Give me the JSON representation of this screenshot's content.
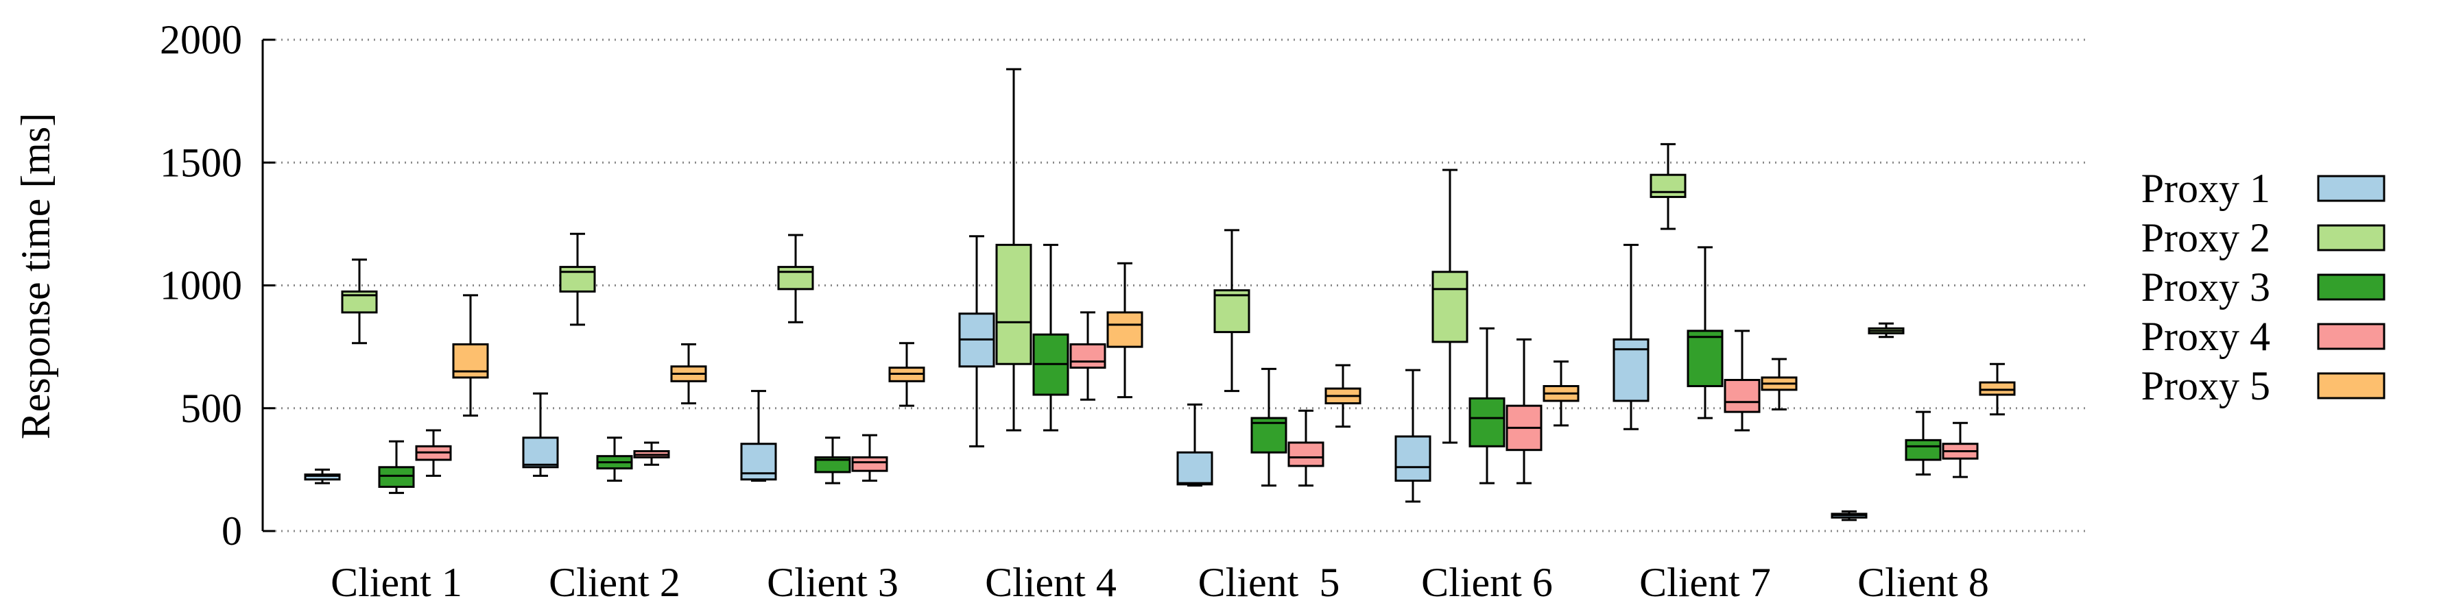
{
  "chart_data": {
    "type": "box",
    "ylabel": "Response time [ms]",
    "ylim": [
      0,
      2000
    ],
    "yticks": [
      0,
      500,
      1000,
      1500,
      2000
    ],
    "grid": "y-dotted",
    "legend_position": "right",
    "categories": [
      "Client 1",
      "Client 2",
      "Client 3",
      "Client 4",
      "Client  5",
      "Client 6",
      "Client 7",
      "Client 8"
    ],
    "series": [
      {
        "name": "Proxy 1",
        "color": "#a9cfe5",
        "boxes": [
          {
            "min": 195,
            "q1": 210,
            "median": 225,
            "q3": 230,
            "max": 250
          },
          {
            "min": 225,
            "q1": 260,
            "median": 270,
            "q3": 380,
            "max": 560
          },
          {
            "min": 205,
            "q1": 210,
            "median": 235,
            "q3": 355,
            "max": 570
          },
          {
            "min": 345,
            "q1": 670,
            "median": 780,
            "q3": 885,
            "max": 1200
          },
          {
            "min": 185,
            "q1": 190,
            "median": 195,
            "q3": 320,
            "max": 515
          },
          {
            "min": 120,
            "q1": 205,
            "median": 260,
            "q3": 385,
            "max": 655
          },
          {
            "min": 415,
            "q1": 530,
            "median": 740,
            "q3": 780,
            "max": 1165
          },
          {
            "min": 45,
            "q1": 55,
            "median": 65,
            "q3": 70,
            "max": 80
          }
        ]
      },
      {
        "name": "Proxy 2",
        "color": "#b3df8a",
        "boxes": [
          {
            "min": 765,
            "q1": 890,
            "median": 960,
            "q3": 975,
            "max": 1105
          },
          {
            "min": 840,
            "q1": 975,
            "median": 1055,
            "q3": 1075,
            "max": 1210
          },
          {
            "min": 850,
            "q1": 985,
            "median": 1055,
            "q3": 1075,
            "max": 1205
          },
          {
            "min": 410,
            "q1": 680,
            "median": 850,
            "q3": 1165,
            "max": 1880
          },
          {
            "min": 570,
            "q1": 810,
            "median": 960,
            "q3": 980,
            "max": 1225
          },
          {
            "min": 360,
            "q1": 770,
            "median": 985,
            "q3": 1055,
            "max": 1470
          },
          {
            "min": 1230,
            "q1": 1360,
            "median": 1380,
            "q3": 1450,
            "max": 1575
          },
          {
            "min": 790,
            "q1": 805,
            "median": 815,
            "q3": 825,
            "max": 845
          }
        ]
      },
      {
        "name": "Proxy 3",
        "color": "#33a02b",
        "boxes": [
          {
            "min": 155,
            "q1": 180,
            "median": 225,
            "q3": 260,
            "max": 365
          },
          {
            "min": 205,
            "q1": 255,
            "median": 280,
            "q3": 305,
            "max": 380
          },
          {
            "min": 195,
            "q1": 240,
            "median": 290,
            "q3": 300,
            "max": 380
          },
          {
            "min": 410,
            "q1": 555,
            "median": 680,
            "q3": 800,
            "max": 1165
          },
          {
            "min": 185,
            "q1": 320,
            "median": 440,
            "q3": 460,
            "max": 660
          },
          {
            "min": 195,
            "q1": 345,
            "median": 460,
            "q3": 540,
            "max": 825
          },
          {
            "min": 460,
            "q1": 590,
            "median": 790,
            "q3": 815,
            "max": 1155
          },
          {
            "min": 230,
            "q1": 290,
            "median": 345,
            "q3": 370,
            "max": 485
          }
        ]
      },
      {
        "name": "Proxy 4",
        "color": "#f99a99",
        "boxes": [
          {
            "min": 225,
            "q1": 290,
            "median": 320,
            "q3": 345,
            "max": 410
          },
          {
            "min": 270,
            "q1": 300,
            "median": 310,
            "q3": 325,
            "max": 360
          },
          {
            "min": 205,
            "q1": 245,
            "median": 280,
            "q3": 300,
            "max": 390
          },
          {
            "min": 535,
            "q1": 665,
            "median": 690,
            "q3": 760,
            "max": 890
          },
          {
            "min": 185,
            "q1": 265,
            "median": 300,
            "q3": 360,
            "max": 490
          },
          {
            "min": 195,
            "q1": 330,
            "median": 420,
            "q3": 510,
            "max": 780
          },
          {
            "min": 410,
            "q1": 485,
            "median": 525,
            "q3": 615,
            "max": 815
          },
          {
            "min": 220,
            "q1": 295,
            "median": 325,
            "q3": 355,
            "max": 440
          }
        ]
      },
      {
        "name": "Proxy 5",
        "color": "#fdbf6e",
        "boxes": [
          {
            "min": 470,
            "q1": 625,
            "median": 650,
            "q3": 760,
            "max": 960
          },
          {
            "min": 520,
            "q1": 610,
            "median": 640,
            "q3": 670,
            "max": 760
          },
          {
            "min": 510,
            "q1": 610,
            "median": 640,
            "q3": 665,
            "max": 765
          },
          {
            "min": 545,
            "q1": 750,
            "median": 840,
            "q3": 890,
            "max": 1090
          },
          {
            "min": 425,
            "q1": 520,
            "median": 550,
            "q3": 580,
            "max": 675
          },
          {
            "min": 430,
            "q1": 530,
            "median": 560,
            "q3": 590,
            "max": 690
          },
          {
            "min": 495,
            "q1": 575,
            "median": 600,
            "q3": 625,
            "max": 700
          },
          {
            "min": 475,
            "q1": 555,
            "median": 575,
            "q3": 605,
            "max": 680
          }
        ]
      }
    ]
  }
}
